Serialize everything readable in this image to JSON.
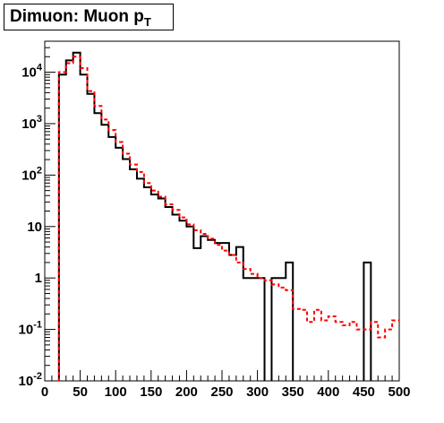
{
  "chart_data": {
    "type": "line",
    "title": "Dimuon: Muon p",
    "title_subscript": "T",
    "xlabel": "",
    "ylabel": "",
    "xlim": [
      0,
      500
    ],
    "ylim": [
      0.01,
      40000
    ],
    "yscale": "log",
    "grid": false,
    "x_ticks": [
      {
        "value": 0,
        "label": "0"
      },
      {
        "value": 50,
        "label": "50"
      },
      {
        "value": 100,
        "label": "100"
      },
      {
        "value": 150,
        "label": "150"
      },
      {
        "value": 200,
        "label": "200"
      },
      {
        "value": 250,
        "label": "250"
      },
      {
        "value": 300,
        "label": "300"
      },
      {
        "value": 350,
        "label": "350"
      },
      {
        "value": 400,
        "label": "400"
      },
      {
        "value": 450,
        "label": "450"
      },
      {
        "value": 500,
        "label": "500"
      }
    ],
    "y_ticks": [
      {
        "value": 0.01,
        "base": "10",
        "exp": "-2"
      },
      {
        "value": 0.1,
        "base": "10",
        "exp": "-1"
      },
      {
        "value": 1,
        "base": "1",
        "exp": ""
      },
      {
        "value": 10,
        "base": "10",
        "exp": ""
      },
      {
        "value": 100,
        "base": "10",
        "exp": "2"
      },
      {
        "value": 1000,
        "base": "10",
        "exp": "3"
      },
      {
        "value": 10000,
        "base": "10",
        "exp": "4"
      }
    ],
    "bin_edges": [
      0,
      10,
      20,
      30,
      40,
      50,
      60,
      70,
      80,
      90,
      100,
      110,
      120,
      130,
      140,
      150,
      160,
      170,
      180,
      190,
      200,
      210,
      220,
      230,
      240,
      250,
      260,
      270,
      280,
      290,
      300,
      310,
      320,
      330,
      340,
      350,
      360,
      370,
      380,
      390,
      400,
      410,
      420,
      430,
      440,
      450,
      460,
      470,
      480,
      490,
      500
    ],
    "series": [
      {
        "color": "#000000",
        "style": "solid",
        "values": [
          0,
          0,
          9000,
          17000,
          24000,
          9000,
          3800,
          1600,
          950,
          550,
          340,
          205,
          130,
          85,
          58,
          42,
          35,
          24,
          17,
          13,
          10,
          3.8,
          6.5,
          5.5,
          4.8,
          4.8,
          2.8,
          4,
          1,
          1,
          1,
          0,
          1,
          1,
          2,
          0,
          0,
          0,
          0,
          0,
          0,
          0,
          0,
          0,
          0,
          2,
          0,
          0,
          0,
          0
        ]
      },
      {
        "color": "#ff0000",
        "style": "dashed",
        "values": [
          0,
          0,
          10000,
          15000,
          20000,
          12000,
          4300,
          2200,
          1200,
          750,
          440,
          260,
          160,
          115,
          70,
          50,
          38,
          27,
          21,
          15,
          11,
          8.5,
          7.2,
          5.8,
          4.4,
          3.4,
          2.8,
          2.0,
          1.5,
          1.2,
          1.0,
          0.9,
          0.75,
          0.65,
          0.58,
          0.25,
          0.24,
          0.14,
          0.24,
          0.15,
          0.18,
          0.14,
          0.12,
          0.14,
          0.1,
          0.1,
          0.14,
          0.07,
          0.1,
          0.15
        ]
      }
    ]
  }
}
